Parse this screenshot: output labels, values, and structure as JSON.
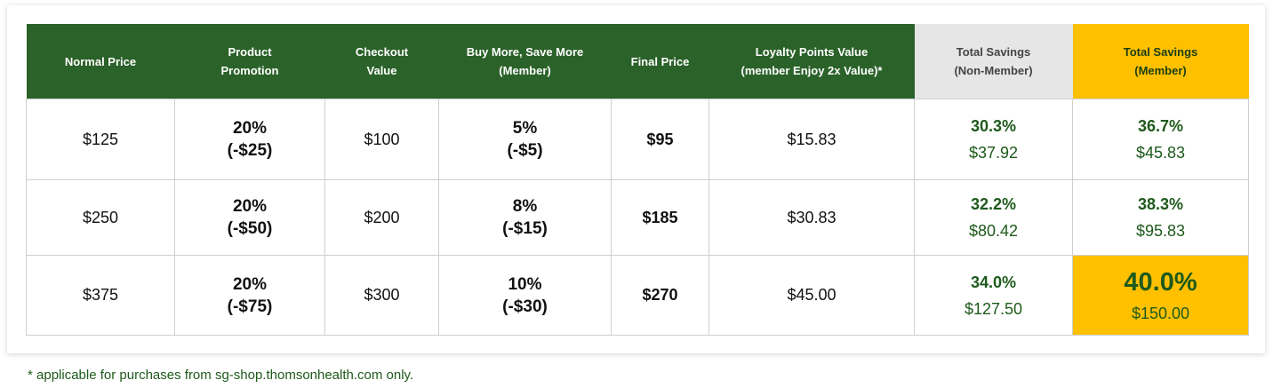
{
  "table": {
    "headers": {
      "normal_price": "Normal Price",
      "product_promotion": "Product\nPromotion",
      "checkout_value": "Checkout\nValue",
      "buy_more": "Buy More, Save More\n(Member)",
      "final_price": "Final Price",
      "loyalty": "Loyalty Points Value\n(member Enjoy 2x Value)*",
      "savings_non_member": "Total Savings\n(Non-Member)",
      "savings_member": "Total Savings\n(Member)"
    },
    "rows": [
      {
        "normal_price": "$125",
        "promo_pct": "20%",
        "promo_amt": "(-$25)",
        "checkout": "$100",
        "buy_more_pct": "5%",
        "buy_more_amt": "(-$5)",
        "final_price": "$95",
        "loyalty": "$15.83",
        "nonmember_pct": "30.3%",
        "nonmember_amt": "$37.92",
        "member_pct": "36.7%",
        "member_amt": "$45.83"
      },
      {
        "normal_price": "$250",
        "promo_pct": "20%",
        "promo_amt": "(-$50)",
        "checkout": "$200",
        "buy_more_pct": "8%",
        "buy_more_amt": "(-$15)",
        "final_price": "$185",
        "loyalty": "$30.83",
        "nonmember_pct": "32.2%",
        "nonmember_amt": "$80.42",
        "member_pct": "38.3%",
        "member_amt": "$95.83"
      },
      {
        "normal_price": "$375",
        "promo_pct": "20%",
        "promo_amt": "(-$75)",
        "checkout": "$300",
        "buy_more_pct": "10%",
        "buy_more_amt": "(-$30)",
        "final_price": "$270",
        "loyalty": "$45.00",
        "nonmember_pct": "34.0%",
        "nonmember_amt": "$127.50",
        "member_pct": "40.0%",
        "member_amt": "$150.00"
      }
    ]
  },
  "footnote": "* applicable for purchases from sg-shop.thomsonhealth.com only.",
  "colors": {
    "header_green": "#2b6229",
    "header_grey": "#e6e6e6",
    "highlight_gold": "#ffc000",
    "text_green": "#1e5a1b"
  }
}
